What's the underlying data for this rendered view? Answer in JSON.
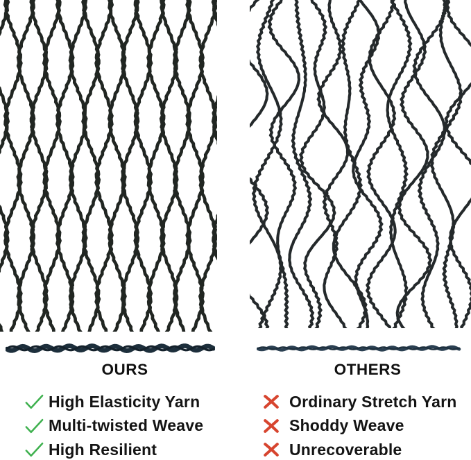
{
  "left_panel": {
    "name": "ours",
    "title": "OURS",
    "net_style": "regular-diamond-mesh",
    "yarn_style": "thick-twisted-yarn",
    "features": [
      {
        "icon": "check-icon",
        "label": "High Elasticity Yarn"
      },
      {
        "icon": "check-icon",
        "label": "Multi-twisted Weave"
      },
      {
        "icon": "check-icon",
        "label": "High Resilient"
      }
    ]
  },
  "right_panel": {
    "name": "others",
    "title": "OTHERS",
    "net_style": "irregular-distorted-mesh",
    "yarn_style": "thin-twisted-yarn",
    "features": [
      {
        "icon": "cross-icon",
        "label": "Ordinary Stretch Yarn"
      },
      {
        "icon": "cross-icon",
        "label": "Shoddy Weave"
      },
      {
        "icon": "cross-icon",
        "label": "Unrecoverable"
      }
    ]
  },
  "colors": {
    "background": "#ffffff",
    "net_stroke_ours": "#212622",
    "net_stroke_others": "#24292b",
    "yarn_ours_main": "#1d2f3c",
    "yarn_ours_shade": "#14212b",
    "yarn_others_main": "#2b4052",
    "yarn_others_shade": "#1c2e3c",
    "text": "#141414",
    "check_green": "#3fb14f",
    "cross_red": "#d7452f"
  }
}
